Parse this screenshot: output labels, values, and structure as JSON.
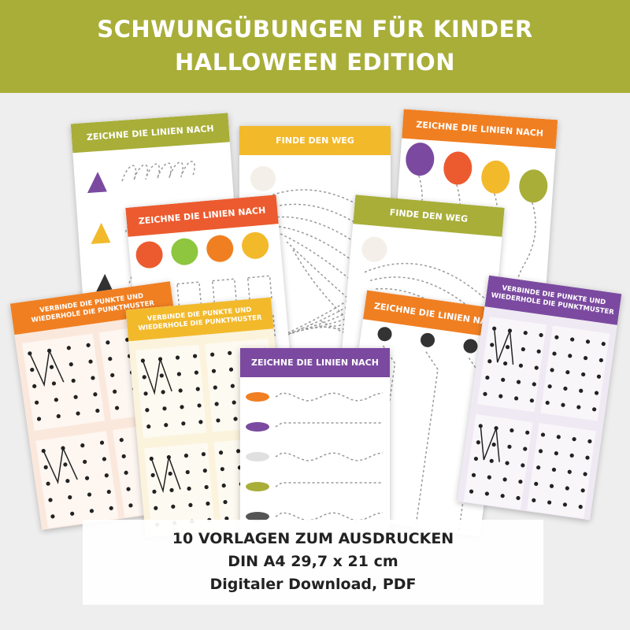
{
  "header": {
    "title_line1": "SCHWUNGÜBUNGEN FÜR KINDER",
    "title_line2": "HALLOWEEN EDITION"
  },
  "cards": [
    {
      "title": "ZEICHNE DIE LINIEN NACH"
    },
    {
      "title": "FINDE DEN WEG"
    },
    {
      "title": "ZEICHNE DIE LINIEN NACH"
    },
    {
      "title": "ZEICHNE DIE LINIEN NACH"
    },
    {
      "title": "FINDE DEN WEG"
    },
    {
      "title": "VERBINDE DIE PUNKTE UND WIEDERHOLE DIE PUNKTMUSTER"
    },
    {
      "title": "VERBINDE DIE PUNKTE UND WIEDERHOLE DIE PUNKTMUSTER"
    },
    {
      "title": "ZEICHNE DIE LINIEN NACH"
    },
    {
      "title": "VERBINDE DIE PUNKTE UND WIEDERHOLE DIE PUNKTMUSTER"
    },
    {
      "title": "ZEICHNE DIE LINIEN NACH"
    }
  ],
  "footer": {
    "line1": "10 VORLAGEN ZUM AUSDRUCKEN",
    "line2": "DIN A4 29,7 x 21 cm",
    "line3": "Digitaler Download, PDF"
  }
}
